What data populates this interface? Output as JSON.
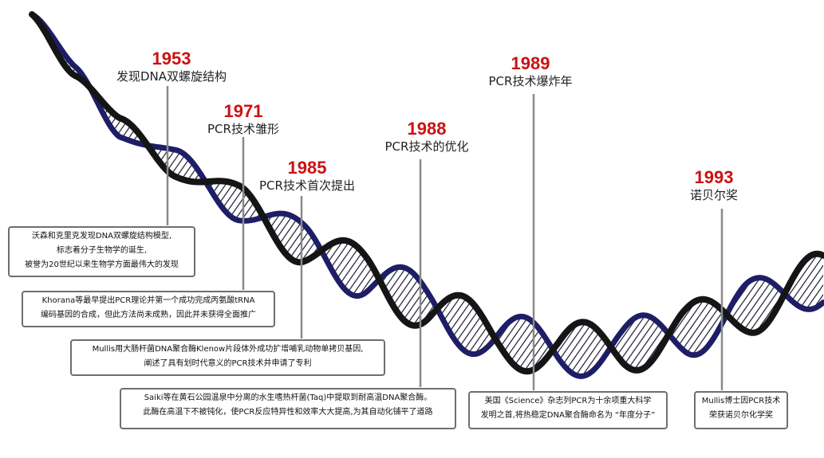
{
  "milestones": [
    {
      "year": "1953",
      "title": "发现DNA双螺旋结构",
      "desc": [
        "沃森和克里克发现DNA双螺旋结构模型,",
        "标志着分子生物学的诞生,",
        "被誉为20世纪以来生物学方面最伟大的发现"
      ]
    },
    {
      "year": "1971",
      "title": "PCR技术雏形",
      "desc": [
        "Khorana等最早提出PCR理论并第一个成功完成丙氨酸tRNA",
        "编码基因的合成，但此方法尚未成熟，因此并未获得全面推广"
      ]
    },
    {
      "year": "1985",
      "title": "PCR技术首次提出",
      "desc": [
        "Mullis用大肠杆菌DNA聚合酶Klenow片段体外成功扩增哺乳动物单拷贝基因,",
        "阐述了具有划时代意义的PCR技术并申请了专利"
      ]
    },
    {
      "year": "1988",
      "title": "PCR技术的优化",
      "desc": [
        "Saiki等在黄石公园温泉中分离的水生嗜热杆菌(Taq)中提取到耐高温DNA聚合酶。",
        "此酶在高温下不被钝化，使PCR反应特异性和效率大大提高,为其自动化铺平了道路"
      ]
    },
    {
      "year": "1989",
      "title": "PCR技术爆炸年",
      "desc": [
        "美国《Science》杂志列PCR为十余项重大科学",
        "发明之首,将热稳定DNA聚合酶命名为 “年度分子”"
      ]
    },
    {
      "year": "1993",
      "title": "诺贝尔奖",
      "desc": [
        "Mullis博士因PCR技术",
        "荣获诺贝尔化学奖"
      ]
    }
  ],
  "colors": {
    "year": "#cc1111",
    "strand_dark": "#151515",
    "strand_blue": "#1e1e66",
    "connector": "#8a8a8a",
    "box_border": "#6e6e6e"
  }
}
